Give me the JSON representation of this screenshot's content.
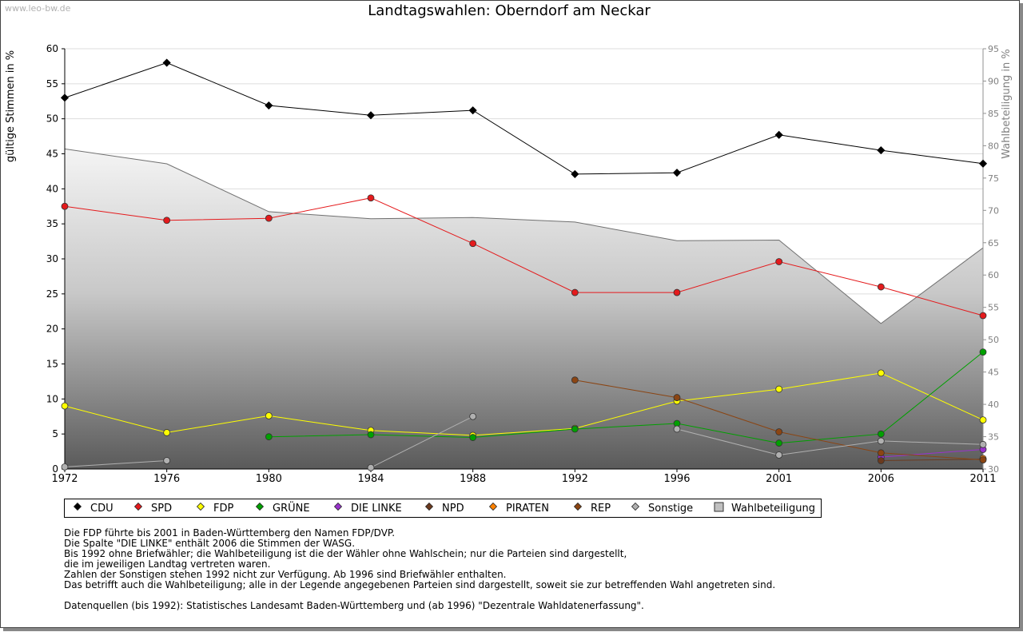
{
  "watermark": "www.leo-bw.de",
  "chart_data": {
    "type": "line",
    "title": "Landtagswahlen: Oberndorf am Neckar",
    "ylabel": "gültige Stimmen in %",
    "y2label": "Wahlbeteiligung in %",
    "x": [
      "1972",
      "1976",
      "1980",
      "1984",
      "1988",
      "1992",
      "1996",
      "2001",
      "2006",
      "2011"
    ],
    "ylim": [
      0,
      60
    ],
    "yticks": [
      0,
      5,
      10,
      15,
      20,
      25,
      30,
      35,
      40,
      45,
      50,
      55,
      60
    ],
    "y2lim": [
      30,
      95
    ],
    "y2ticks": [
      30,
      35,
      40,
      45,
      50,
      55,
      60,
      65,
      70,
      75,
      80,
      85,
      90,
      95
    ],
    "grid": true,
    "legend_position": "bottom",
    "series": [
      {
        "name": "CDU",
        "color": "#000000",
        "values": [
          53.0,
          58.0,
          51.9,
          50.5,
          51.2,
          42.1,
          42.3,
          47.7,
          45.5,
          43.6
        ]
      },
      {
        "name": "SPD",
        "color": "#e41a1c",
        "values": [
          37.5,
          35.5,
          35.8,
          38.7,
          32.2,
          25.2,
          25.2,
          29.6,
          26.0,
          21.9
        ]
      },
      {
        "name": "FDP",
        "color": "#ffff00",
        "values": [
          9.0,
          5.2,
          7.6,
          5.5,
          4.8,
          5.8,
          9.7,
          11.4,
          13.7,
          7.0
        ]
      },
      {
        "name": "GRÜNE",
        "color": "#00a000",
        "values": [
          null,
          null,
          4.6,
          4.9,
          4.5,
          5.7,
          6.5,
          3.7,
          5.0,
          16.7
        ]
      },
      {
        "name": "DIE LINKE",
        "color": "#9933cc",
        "values": [
          null,
          null,
          null,
          null,
          null,
          null,
          null,
          null,
          1.7,
          2.8
        ]
      },
      {
        "name": "NPD",
        "color": "#6b3a1e",
        "values": [
          null,
          null,
          null,
          null,
          null,
          null,
          null,
          null,
          1.2,
          1.4
        ]
      },
      {
        "name": "PIRATEN",
        "color": "#ff8000",
        "values": [
          null,
          null,
          null,
          null,
          null,
          null,
          null,
          null,
          null,
          1.5
        ]
      },
      {
        "name": "REP",
        "color": "#8b4513",
        "values": [
          null,
          null,
          null,
          null,
          null,
          12.7,
          10.2,
          5.3,
          2.3,
          1.3
        ]
      },
      {
        "name": "Sonstige",
        "color": "#b0b0b0",
        "values": [
          0.3,
          1.2,
          null,
          0.2,
          7.5,
          null,
          5.7,
          2.0,
          4.0,
          3.5
        ]
      }
    ],
    "turnout": {
      "name": "Wahlbeteiligung",
      "color": "#a0a0a0",
      "values": [
        79.5,
        77.2,
        69.8,
        68.7,
        68.9,
        68.2,
        65.3,
        65.4,
        52.5,
        64.2
      ]
    }
  },
  "legend": [
    {
      "label": "CDU",
      "color": "#000000",
      "shape": "diamond"
    },
    {
      "label": "SPD",
      "color": "#e41a1c",
      "shape": "diamond"
    },
    {
      "label": "FDP",
      "color": "#ffff00",
      "shape": "diamond"
    },
    {
      "label": "GRÜNE",
      "color": "#00a000",
      "shape": "diamond"
    },
    {
      "label": "DIE LINKE",
      "color": "#9933cc",
      "shape": "diamond"
    },
    {
      "label": "NPD",
      "color": "#6b3a1e",
      "shape": "diamond"
    },
    {
      "label": "PIRATEN",
      "color": "#ff8000",
      "shape": "diamond"
    },
    {
      "label": "REP",
      "color": "#8b4513",
      "shape": "diamond"
    },
    {
      "label": "Sonstige",
      "color": "#b0b0b0",
      "shape": "diamond"
    },
    {
      "label": "Wahlbeteiligung",
      "color": "#c0c0c0",
      "shape": "square"
    }
  ],
  "notes": [
    "Die FDP führte bis 2001 in Baden-Württemberg den Namen FDP/DVP.",
    "Die Spalte \"DIE LINKE\" enthält 2006 die Stimmen der WASG.",
    "Bis 1992 ohne Briefwähler; die Wahlbeteiligung ist die der Wähler ohne Wahlschein; nur die Parteien sind dargestellt,",
    "die im jeweiligen Landtag vertreten waren.",
    "Zahlen der Sonstigen stehen 1992 nicht zur Verfügung. Ab 1996 sind Briefwähler enthalten.",
    "Das betrifft auch die Wahlbeteiligung; alle in der Legende angegebenen Parteien sind dargestellt, soweit sie zur betreffenden Wahl angetreten sind.",
    "",
    "Datenquellen (bis 1992): Statistisches Landesamt Baden-Württemberg und (ab 1996) \"Dezentrale Wahldatenerfassung\"."
  ]
}
